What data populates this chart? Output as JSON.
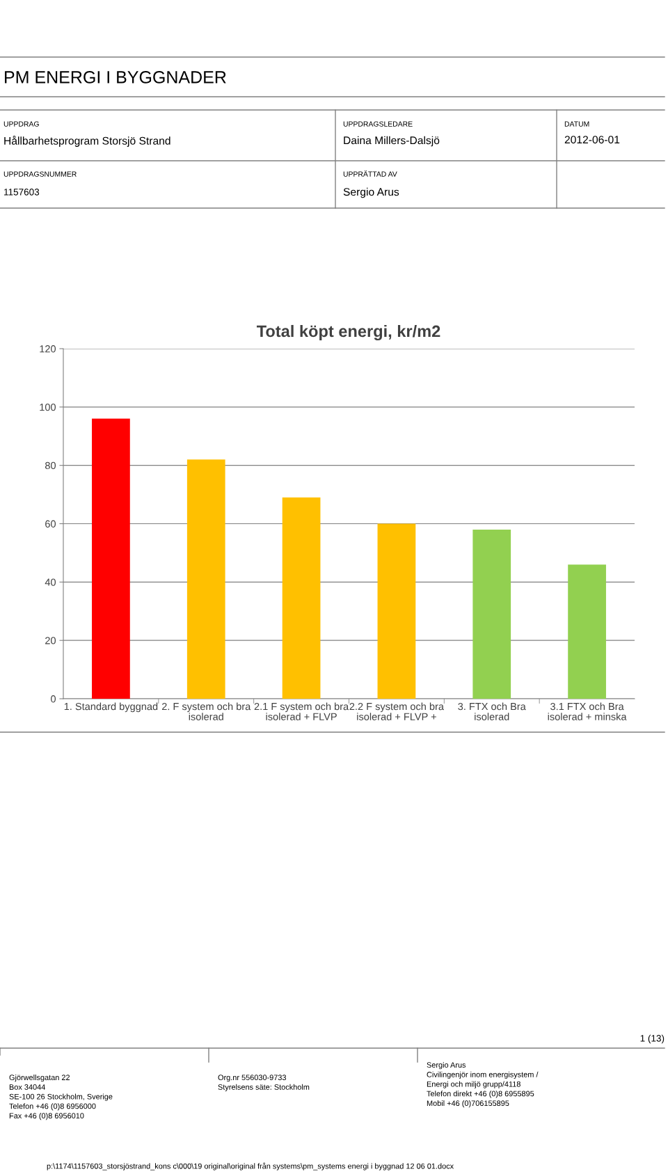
{
  "chart_data": {
    "type": "bar",
    "title": "Total köpt energi, kr/m2",
    "categories": [
      "1. Standard byggnad",
      "2. F system och bra\nisolerad",
      "2.1 F system och bra\nisolerad + FLVP",
      "2.2 F system och bra\nisolerad + FLVP +",
      "3. FTX och Bra\nisolerad",
      "3.1 FTX och Bra\nisolerad + minska"
    ],
    "values": [
      96,
      82,
      69,
      60,
      58,
      46
    ],
    "colors": [
      "#ff0000",
      "#ffc000",
      "#ffc000",
      "#ffc000",
      "#92d050",
      "#92d050"
    ],
    "ylim": [
      0,
      120
    ],
    "yticks": [
      0,
      20,
      40,
      60,
      80,
      100,
      120
    ],
    "grid": "y",
    "legend": false,
    "annotations": [
      "PM ENERGI I BYGGNADER",
      "UPPDRAG",
      "Hållbarhetsprogram Storsjö Strand",
      "UPPDRAGSLEDARE",
      "Daina Millers-Dalsjö",
      "DATUM",
      "2012-06-01",
      "UPPDRAGSNUMMER",
      "1157603",
      "UPPRÄTTAD AV",
      "Sergio Arus",
      "1 (13)",
      "Gjörwellsgatan 22\nBox 34044\nSE-100 26 Stockholm, Sverige\nTelefon +46 (0)8 6956000\nFax +46 (0)8 6956010",
      "Org.nr 556030-9733\nStyrelsens säte: Stockholm",
      "Sergio Arus\nCivilingenjör inom energisystem /\nEnergi och miljö grupp/4118\nTelefon direkt +46 (0)8 6955895\nMobil +46 (0)706155895",
      "p:\\1174\\1157603_storsjöstrand_kons c\\000\\19 original\\original från systems\\pm_systems energi i byggnad 12 06 01.docx"
    ]
  }
}
